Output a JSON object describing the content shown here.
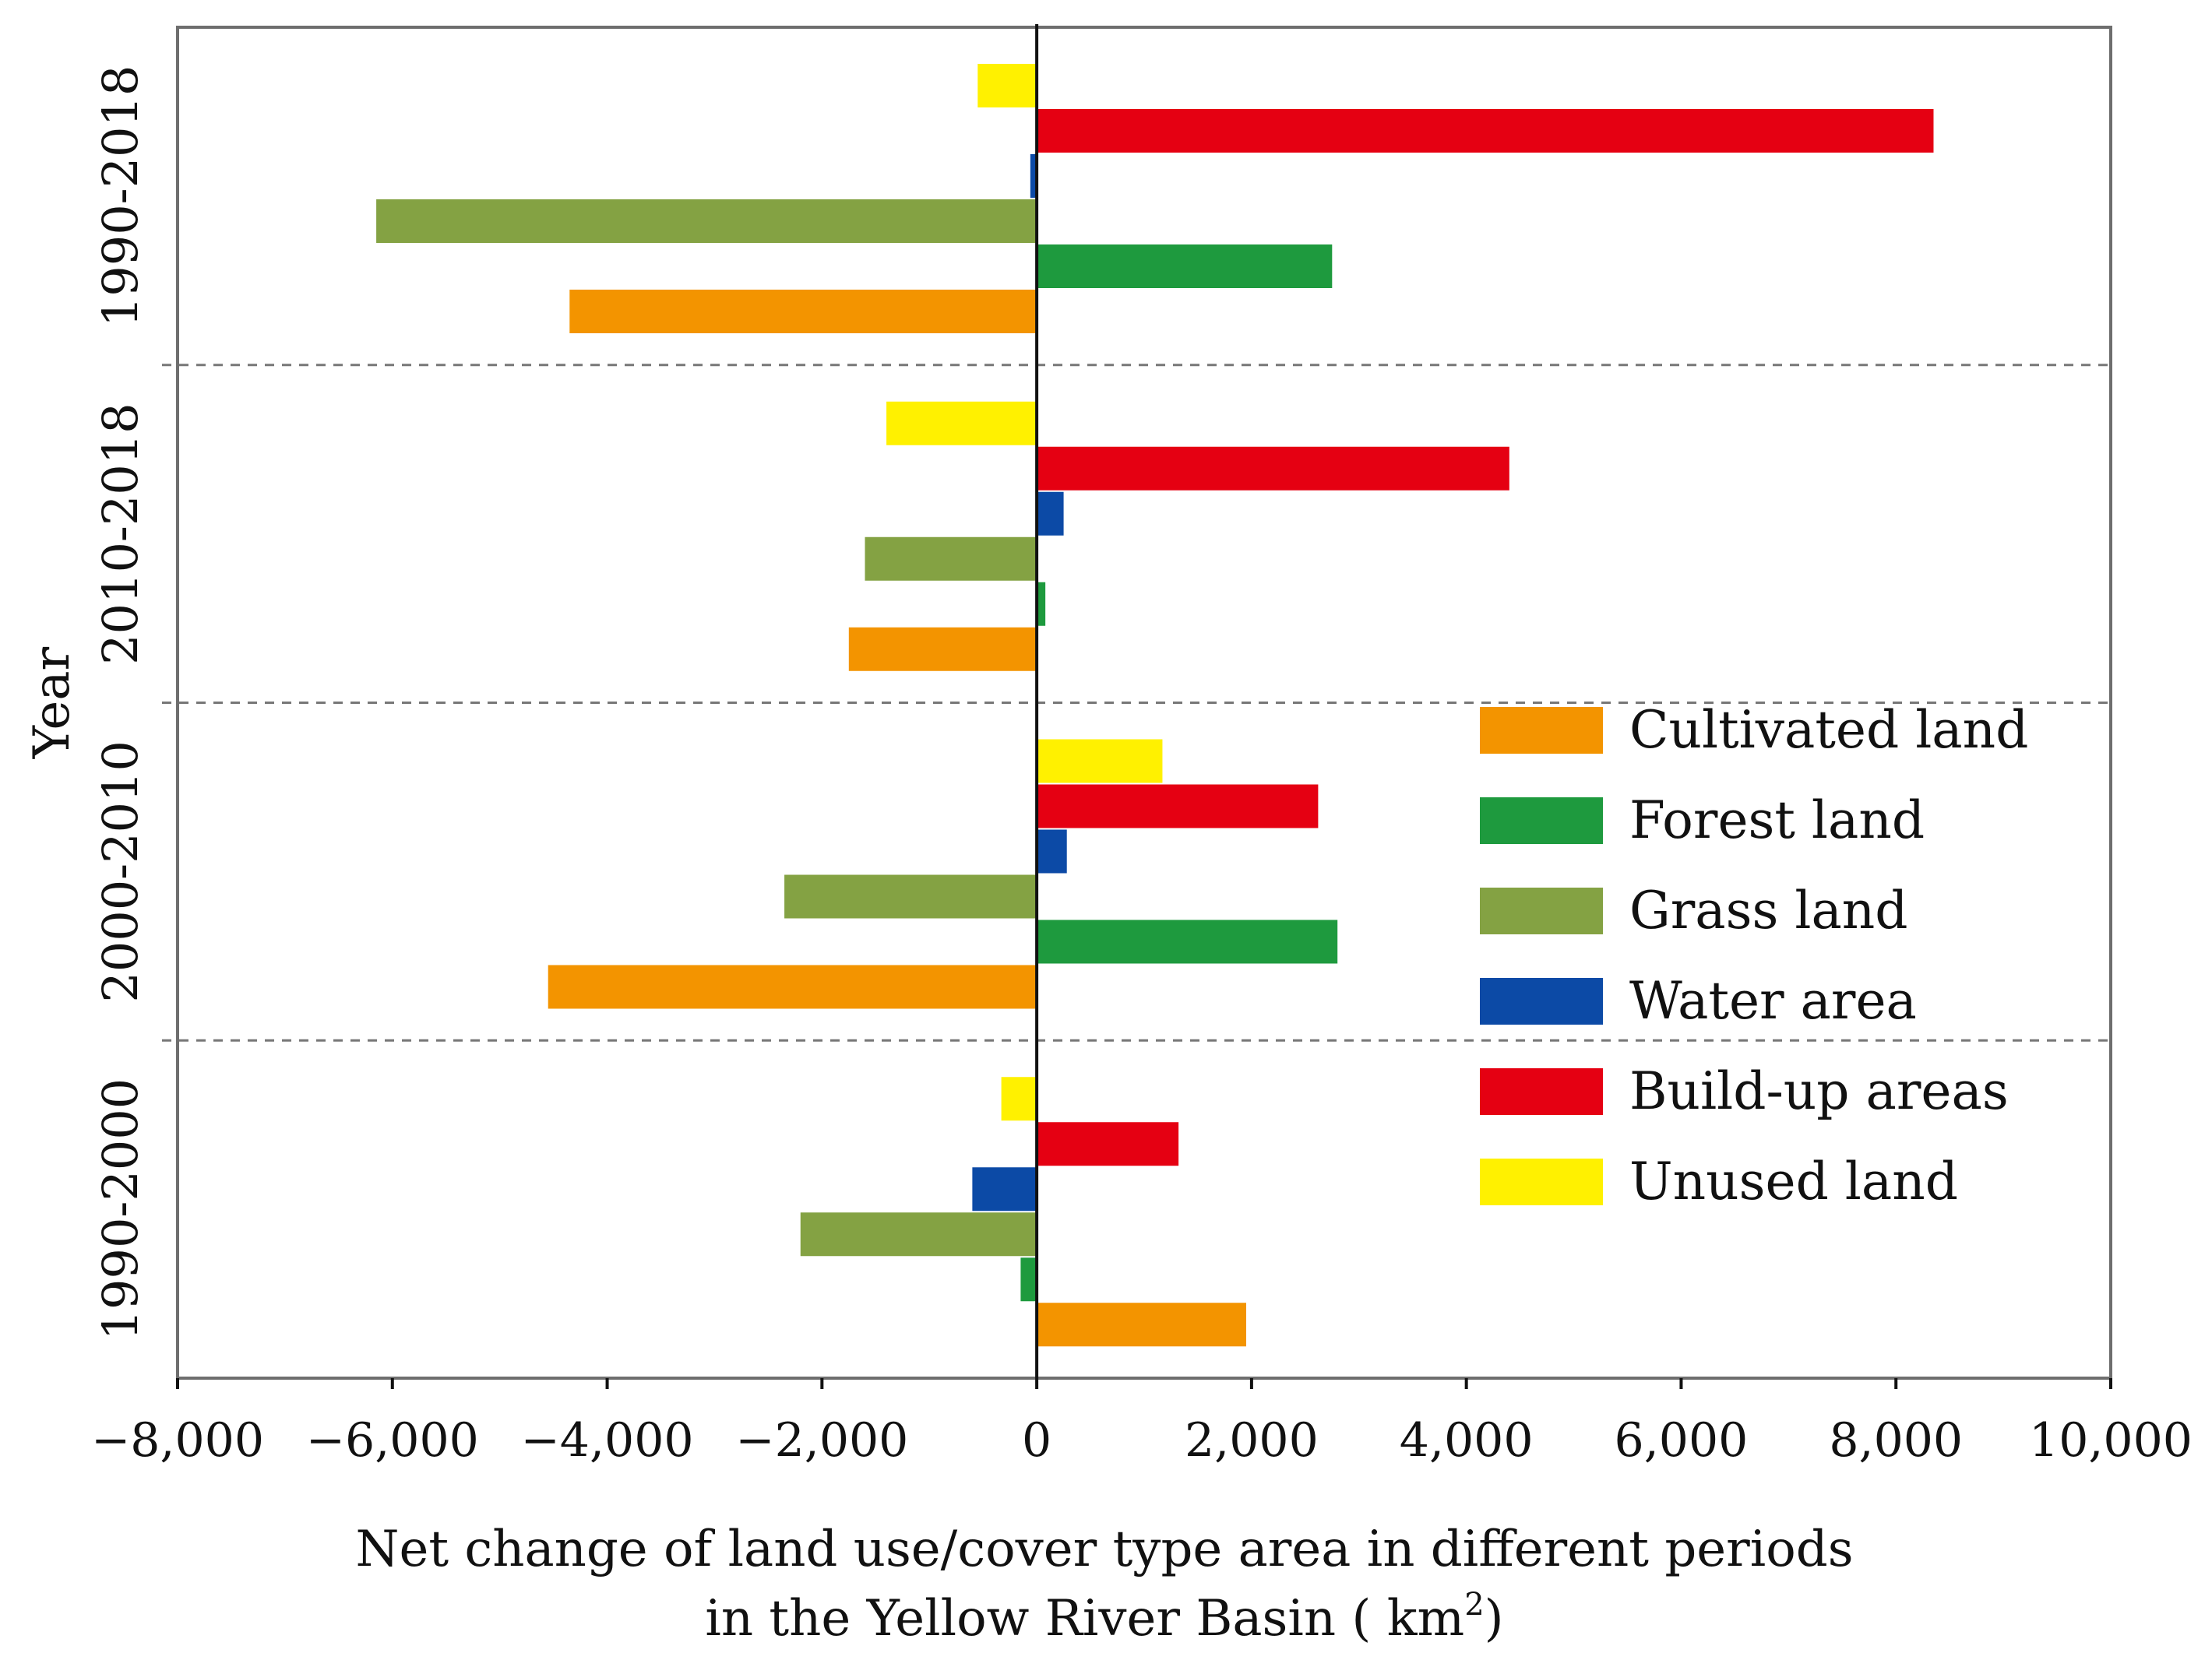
{
  "chart_data": {
    "type": "bar",
    "orientation": "horizontal",
    "ylabel": "Year",
    "xlabel_line1": "Net change of land use/cover type area in different periods",
    "xlabel_line2_prefix": "in the Yellow River Basin ( km",
    "xlabel_line2_sup": "2",
    "xlabel_line2_suffix": ")",
    "xlim": [
      -8000,
      10000
    ],
    "xticks": [
      -8000,
      -6000,
      -4000,
      -2000,
      0,
      2000,
      4000,
      6000,
      8000,
      10000
    ],
    "xtick_labels": [
      "−8,000",
      "−6,000",
      "−4,000",
      "−2,000",
      "0",
      "2,000",
      "4,000",
      "6,000",
      "8,000",
      "10,000"
    ],
    "categories": [
      "1990-2018",
      "2010-2018",
      "2000-2010",
      "1990-2000"
    ],
    "legend_position": "right-middle",
    "series": [
      {
        "name": "Cultivated land",
        "color": "#f39400",
        "values": [
          -4350,
          -1750,
          -4550,
          1950
        ]
      },
      {
        "name": "Forest land",
        "color": "#1e9a3e",
        "values": [
          2750,
          80,
          2800,
          -150
        ]
      },
      {
        "name": "Grass land",
        "color": "#84a243",
        "values": [
          -6150,
          -1600,
          -2350,
          -2200
        ]
      },
      {
        "name": "Water area",
        "color": "#0c4aa6",
        "values": [
          -60,
          250,
          280,
          -600
        ]
      },
      {
        "name": "Build-up areas",
        "color": "#e50012",
        "values": [
          8350,
          4400,
          2620,
          1320
        ]
      },
      {
        "name": "Unused land",
        "color": "#fff100",
        "values": [
          -550,
          -1400,
          1170,
          -330
        ]
      }
    ]
  }
}
